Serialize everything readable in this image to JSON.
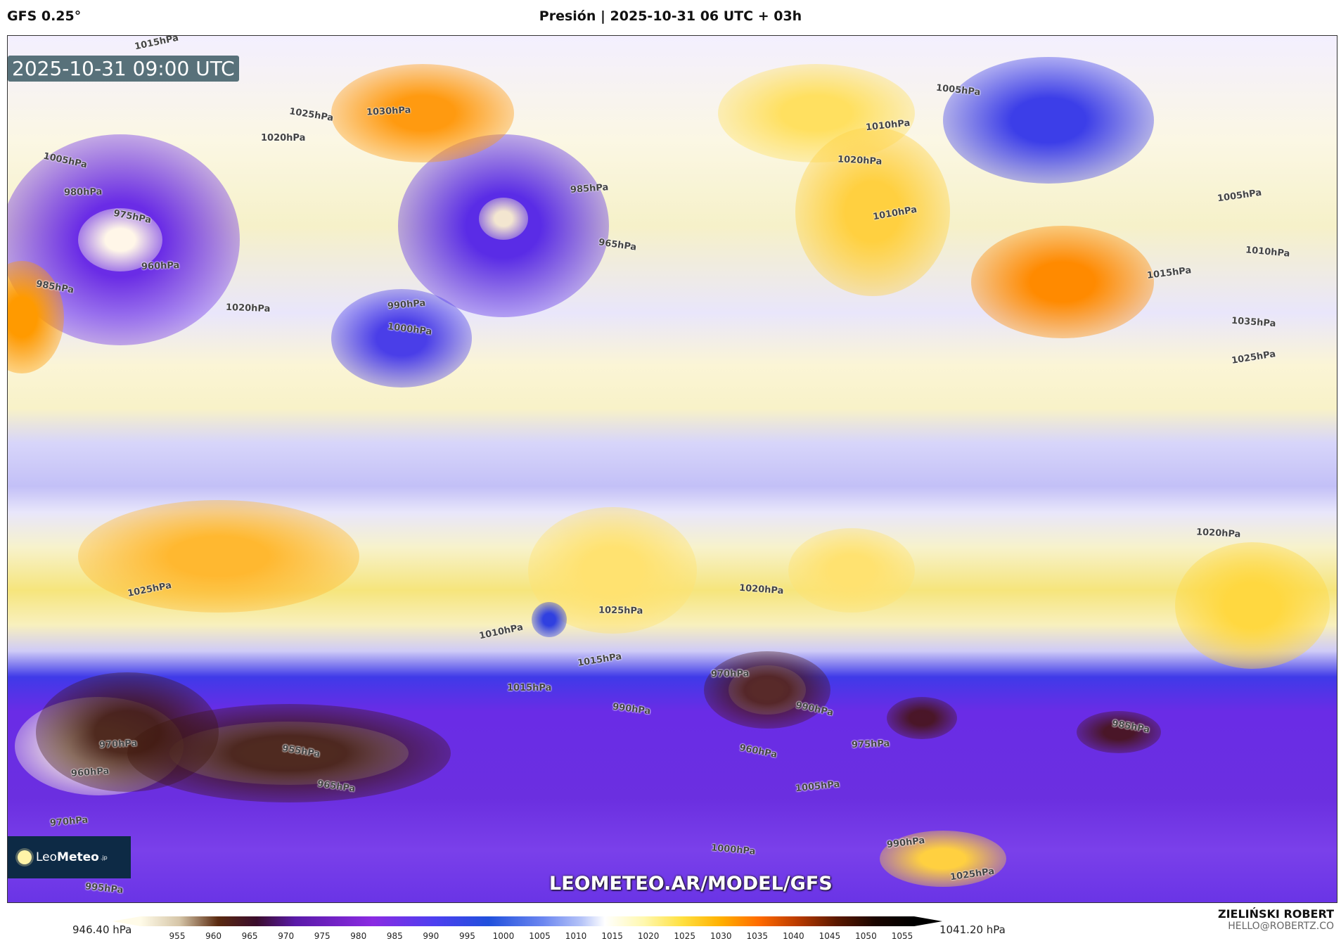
{
  "header": {
    "model": "GFS 0.25°",
    "title": "Presión | 2025-10-31 06 UTC + 03h"
  },
  "map": {
    "valid_time": "2025-10-31 09:00 UTC",
    "watermark_url": "LEOMETEO.AR/MODEL/GFS",
    "logo": {
      "light": "Leo",
      "bold": "Meteo",
      "suffix": ".jp"
    },
    "isobar_labels": [
      "1015hPa",
      "1020hPa",
      "1005hPa",
      "980hPa",
      "975hPa",
      "960hPa",
      "985hPa",
      "1030hPa",
      "1025hPa",
      "985hPa",
      "965hPa",
      "990hPa",
      "1000hPa",
      "1010hPa",
      "1005hPa",
      "1015hPa",
      "1010hPa",
      "1005hPa",
      "1035hPa",
      "1025hPa",
      "1020hPa",
      "1010hPa",
      "1020hPa",
      "1025hPa",
      "1025hPa",
      "1010hPa",
      "1015hPa",
      "990hPa",
      "970hPa",
      "960hPa",
      "975hPa",
      "985hPa",
      "970hPa",
      "955hPa",
      "960hPa",
      "965hPa",
      "970hPa",
      "990hPa",
      "1005hPa",
      "995hPa",
      "990hPa",
      "1000hPa",
      "1025hPa",
      "1020hPa",
      "1015hPa",
      "1020hPa"
    ]
  },
  "colorbar": {
    "unit": "hPa",
    "min_label": "946.40 hPa",
    "max_label": "1041.20 hPa",
    "ticks": [
      "955",
      "960",
      "965",
      "970",
      "975",
      "980",
      "985",
      "990",
      "995",
      "1000",
      "1005",
      "1010",
      "1015",
      "1020",
      "1025",
      "1030",
      "1035",
      "1040",
      "1045",
      "1050",
      "1055"
    ]
  },
  "author": {
    "name": "ZIELIŃSKI ROBERT",
    "email": "HELLO@ROBERTZ.CO"
  }
}
